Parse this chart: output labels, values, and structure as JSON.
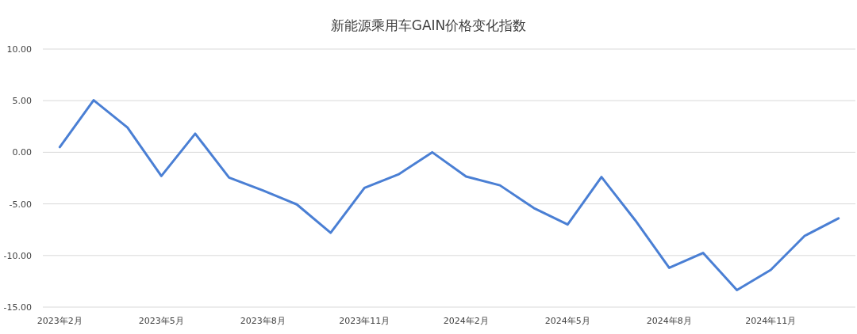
{
  "chart_data": {
    "type": "line",
    "title": "新能源乘用车GAIN价格变化指数",
    "categories": [
      "2023年2月",
      null,
      null,
      "2023年5月",
      null,
      null,
      "2023年8月",
      null,
      null,
      "2023年11月",
      null,
      null,
      "2024年2月",
      null,
      null,
      "2024年5月",
      null,
      null,
      "2024年8月",
      null,
      null,
      "2024年11月",
      null,
      null
    ],
    "series": [
      {
        "color": "#4a7fd4",
        "values": [
          0.5,
          5.05,
          2.4,
          -2.3,
          1.8,
          -2.45,
          -3.7,
          -5.05,
          -7.8,
          -3.45,
          -2.15,
          0.0,
          -2.35,
          -3.2,
          -5.4,
          -7.0,
          -2.4,
          -6.6,
          -11.2,
          -9.75,
          -13.35,
          -11.4,
          -8.1,
          -6.4
        ]
      }
    ],
    "ylim": [
      -15,
      10
    ],
    "yticks": [
      {
        "value": -15,
        "label": "-15.00"
      },
      {
        "value": -10,
        "label": "-10.00"
      },
      {
        "value": -5,
        "label": "-5.00"
      },
      {
        "value": 0,
        "label": "0.00"
      },
      {
        "value": 5,
        "label": "5.00"
      },
      {
        "value": 10,
        "label": "10.00"
      }
    ],
    "grid": "y",
    "marker": "none",
    "line_style": "solid"
  }
}
